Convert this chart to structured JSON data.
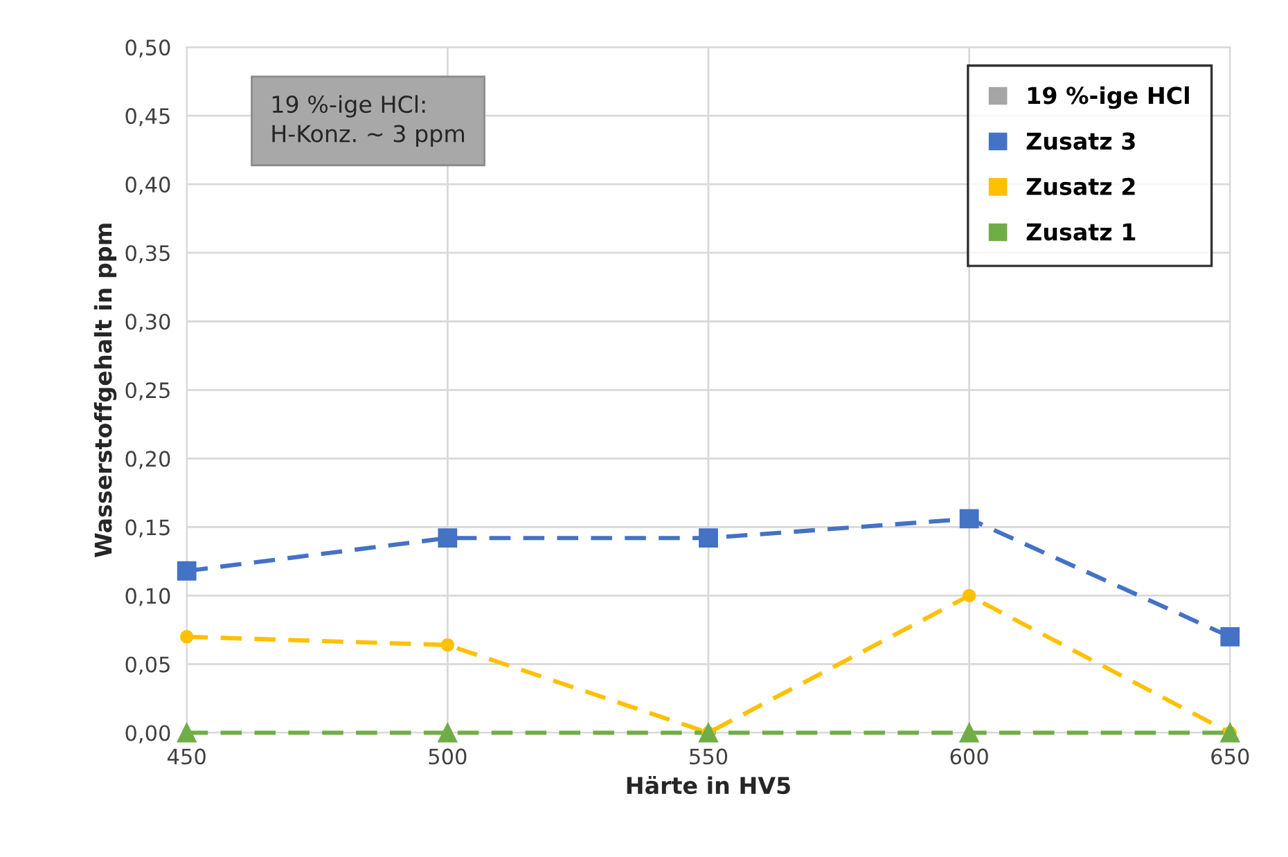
{
  "chart_data": {
    "type": "line",
    "xlabel": "Härte in HV5",
    "ylabel": "Wasserstoffgehalt in ppm",
    "x": [
      450,
      500,
      550,
      600,
      650
    ],
    "xlim": [
      450,
      650
    ],
    "xticks": [
      450,
      500,
      550,
      600,
      650
    ],
    "ylim": [
      0,
      0.5
    ],
    "yticks": [
      {
        "value": 0,
        "label": "0,00"
      },
      {
        "value": 0.05,
        "label": "0,05"
      },
      {
        "value": 0.1,
        "label": "0,10"
      },
      {
        "value": 0.15,
        "label": "0,15"
      },
      {
        "value": 0.2,
        "label": "0,20"
      },
      {
        "value": 0.25,
        "label": "0,25"
      },
      {
        "value": 0.3,
        "label": "0,30"
      },
      {
        "value": 0.35,
        "label": "0,35"
      },
      {
        "value": 0.4,
        "label": "0,40"
      },
      {
        "value": 0.45,
        "label": "0,45"
      },
      {
        "value": 0.5,
        "label": "0,50"
      }
    ],
    "grid": true,
    "legend": "top right",
    "line_style": "dashed",
    "series": [
      {
        "name": "19 %-ige HCl",
        "color": "#a5a5a5",
        "values": [
          null,
          null,
          null,
          null,
          null
        ]
      },
      {
        "name": "Zusatz 3",
        "color": "#4472c4",
        "marker": "square",
        "values": [
          0.118,
          0.142,
          0.142,
          0.156,
          0.07
        ]
      },
      {
        "name": "Zusatz 2",
        "color": "#ffc000",
        "marker": "circle",
        "values": [
          0.07,
          0.064,
          0,
          0.1,
          0
        ]
      },
      {
        "name": "Zusatz 1",
        "color": "#70ad47",
        "marker": "triangle",
        "values": [
          0,
          0,
          0,
          0,
          0
        ]
      }
    ],
    "annotations": [
      "19 %-ige HCl:\nH-Konz. ~ 3 ppm"
    ]
  }
}
